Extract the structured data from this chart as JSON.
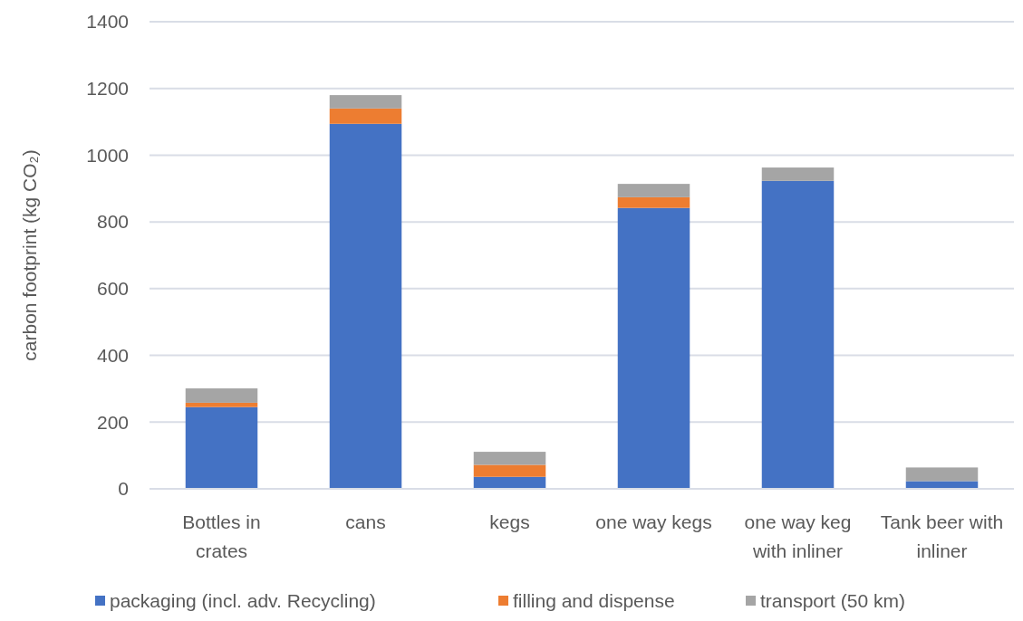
{
  "chart_data": {
    "type": "bar",
    "stacked": true,
    "ylabel": "carbon footprint (kg CO₂)",
    "categories": [
      "Bottles in crates",
      "cans",
      "kegs",
      "one way kegs",
      "one way keg with inliner",
      "Tank beer with inliner"
    ],
    "series": [
      {
        "name": "packaging (incl. adv. Recycling)",
        "color": "#4472c4",
        "values": [
          245,
          1094,
          36,
          842,
          923,
          23
        ]
      },
      {
        "name": "filling and dispense",
        "color": "#ed7d31",
        "values": [
          13,
          46,
          36,
          32,
          0,
          0
        ]
      },
      {
        "name": "transport (50 km)",
        "color": "#a5a5a5",
        "values": [
          43,
          40,
          39,
          40,
          40,
          41
        ]
      }
    ],
    "ylim": [
      0,
      1400
    ],
    "yticks": [
      0,
      200,
      400,
      600,
      800,
      1000,
      1200,
      1400
    ],
    "grid": "y",
    "legend": "bottom"
  }
}
